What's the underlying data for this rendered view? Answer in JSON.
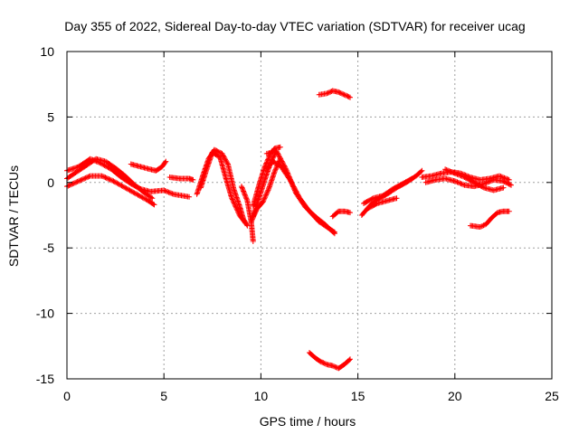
{
  "chart_data": {
    "type": "scatter",
    "title": "Day 355 of 2022, Sidereal Day-to-day VTEC variation (SDTVAR) for receiver ucag",
    "xlabel": "GPS time / hours",
    "ylabel": "SDTVAR / TECUs",
    "xlim": [
      0,
      25
    ],
    "ylim": [
      -15,
      10
    ],
    "xticks": [
      0,
      5,
      10,
      15,
      20,
      25
    ],
    "yticks": [
      -15,
      -10,
      -5,
      0,
      5,
      10
    ],
    "grid": true,
    "marker": "+",
    "series": [
      {
        "name": "SDTVAR",
        "color": "#ff0000",
        "arcs": [
          [
            [
              0.0,
              0.3
            ],
            [
              0.5,
              0.8
            ],
            [
              1.0,
              1.3
            ],
            [
              1.5,
              1.8
            ],
            [
              2.0,
              1.6
            ],
            [
              2.5,
              1.1
            ],
            [
              3.0,
              0.5
            ],
            [
              3.5,
              -0.2
            ],
            [
              4.0,
              -0.8
            ],
            [
              4.4,
              -1.2
            ]
          ],
          [
            [
              0.0,
              0.9
            ],
            [
              0.6,
              1.2
            ],
            [
              1.2,
              1.8
            ],
            [
              1.7,
              1.5
            ],
            [
              2.3,
              1.0
            ],
            [
              2.8,
              0.4
            ],
            [
              3.3,
              -0.1
            ],
            [
              3.8,
              -0.5
            ],
            [
              4.3,
              -0.7
            ],
            [
              5.0,
              -0.6
            ],
            [
              5.5,
              -0.9
            ],
            [
              6.3,
              -1.1
            ]
          ],
          [
            [
              0.0,
              -0.3
            ],
            [
              0.6,
              0.1
            ],
            [
              1.2,
              0.5
            ],
            [
              1.8,
              0.5
            ],
            [
              2.4,
              0.1
            ],
            [
              3.0,
              -0.4
            ],
            [
              3.6,
              -0.9
            ],
            [
              4.2,
              -1.4
            ],
            [
              4.5,
              -1.7
            ]
          ],
          [
            [
              3.3,
              1.4
            ],
            [
              3.8,
              1.2
            ],
            [
              4.3,
              1.0
            ],
            [
              4.6,
              0.9
            ],
            [
              4.9,
              1.2
            ],
            [
              5.1,
              1.6
            ]
          ],
          [
            [
              5.3,
              0.4
            ],
            [
              5.8,
              0.3
            ],
            [
              6.3,
              0.3
            ],
            [
              6.5,
              0.2
            ]
          ],
          [
            [
              6.7,
              -0.9
            ],
            [
              7.0,
              0.5
            ],
            [
              7.3,
              1.8
            ],
            [
              7.6,
              2.5
            ],
            [
              8.0,
              2.2
            ],
            [
              8.3,
              1.4
            ],
            [
              8.6,
              -0.5
            ],
            [
              8.9,
              -1.8
            ],
            [
              9.1,
              -2.8
            ],
            [
              9.3,
              -3.3
            ]
          ],
          [
            [
              6.9,
              -0.4
            ],
            [
              7.2,
              1.0
            ],
            [
              7.5,
              2.3
            ],
            [
              7.9,
              1.9
            ],
            [
              8.2,
              0.3
            ],
            [
              8.5,
              -1.2
            ],
            [
              8.9,
              -2.5
            ],
            [
              9.2,
              -3.1
            ]
          ],
          [
            [
              9.0,
              -0.3
            ],
            [
              9.3,
              -1.4
            ],
            [
              9.5,
              -3.0
            ],
            [
              9.6,
              -4.5
            ]
          ],
          [
            [
              9.6,
              -1.8
            ],
            [
              9.9,
              -0.2
            ],
            [
              10.2,
              1.2
            ],
            [
              10.5,
              2.2
            ],
            [
              10.7,
              2.6
            ],
            [
              11.0,
              2.7
            ]
          ],
          [
            [
              9.5,
              -3.0
            ],
            [
              9.8,
              -2.0
            ],
            [
              10.1,
              -1.5
            ],
            [
              10.4,
              -0.5
            ],
            [
              10.7,
              0.8
            ],
            [
              11.0,
              1.8
            ]
          ],
          [
            [
              9.6,
              -2.6
            ],
            [
              9.9,
              -1.2
            ],
            [
              10.2,
              0.2
            ],
            [
              10.5,
              1.5
            ],
            [
              10.8,
              2.4
            ]
          ],
          [
            [
              10.3,
              1.0
            ],
            [
              10.6,
              1.6
            ],
            [
              11.0,
              1.3
            ],
            [
              11.5,
              0.2
            ],
            [
              12.0,
              -1.2
            ],
            [
              12.5,
              -2.2
            ],
            [
              13.0,
              -3.0
            ],
            [
              13.5,
              -3.5
            ],
            [
              13.8,
              -3.8
            ]
          ],
          [
            [
              10.3,
              2.2
            ],
            [
              10.8,
              2.4
            ],
            [
              11.3,
              1.0
            ],
            [
              11.8,
              -0.8
            ],
            [
              12.3,
              -1.9
            ],
            [
              12.8,
              -2.6
            ],
            [
              13.3,
              -3.2
            ],
            [
              13.8,
              -3.9
            ]
          ],
          [
            [
              13.7,
              -2.6
            ],
            [
              14.0,
              -2.2
            ],
            [
              14.3,
              -2.2
            ],
            [
              14.6,
              -2.3
            ]
          ],
          [
            [
              13.0,
              6.7
            ],
            [
              13.4,
              6.8
            ],
            [
              13.7,
              7.0
            ],
            [
              14.0,
              6.9
            ],
            [
              14.3,
              6.7
            ],
            [
              14.6,
              6.5
            ]
          ],
          [
            [
              12.5,
              -13.0
            ],
            [
              12.8,
              -13.4
            ],
            [
              13.1,
              -13.7
            ],
            [
              13.4,
              -13.9
            ],
            [
              13.7,
              -14.0
            ],
            [
              14.0,
              -14.2
            ],
            [
              14.3,
              -13.9
            ],
            [
              14.6,
              -13.5
            ]
          ],
          [
            [
              15.2,
              -2.5
            ],
            [
              15.6,
              -1.8
            ],
            [
              16.0,
              -1.3
            ],
            [
              16.5,
              -0.9
            ],
            [
              17.0,
              -0.4
            ],
            [
              17.5,
              0.0
            ],
            [
              18.0,
              0.5
            ],
            [
              18.3,
              0.9
            ]
          ],
          [
            [
              15.3,
              -1.6
            ],
            [
              15.8,
              -1.2
            ],
            [
              16.3,
              -1.0
            ],
            [
              16.8,
              -0.5
            ],
            [
              17.3,
              -0.1
            ],
            [
              17.8,
              0.3
            ]
          ],
          [
            [
              15.5,
              -2.0
            ],
            [
              16.0,
              -1.6
            ],
            [
              16.5,
              -1.4
            ],
            [
              17.0,
              -1.2
            ]
          ],
          [
            [
              18.3,
              0.4
            ],
            [
              18.8,
              0.5
            ],
            [
              19.3,
              0.7
            ],
            [
              19.8,
              0.8
            ],
            [
              20.3,
              0.7
            ],
            [
              20.8,
              0.4
            ],
            [
              21.3,
              0.2
            ],
            [
              21.8,
              0.3
            ],
            [
              22.3,
              0.5
            ],
            [
              22.8,
              0.2
            ]
          ],
          [
            [
              18.5,
              0.0
            ],
            [
              19.0,
              0.2
            ],
            [
              19.5,
              0.3
            ],
            [
              20.0,
              0.1
            ],
            [
              20.5,
              -0.2
            ],
            [
              21.0,
              -0.3
            ],
            [
              21.5,
              -0.1
            ],
            [
              22.0,
              0.2
            ],
            [
              22.5,
              0.1
            ],
            [
              22.9,
              -0.2
            ]
          ],
          [
            [
              19.5,
              1.0
            ],
            [
              20.0,
              0.7
            ],
            [
              20.5,
              0.4
            ],
            [
              21.0,
              0.0
            ],
            [
              21.5,
              -0.4
            ],
            [
              22.0,
              -0.6
            ],
            [
              22.5,
              -0.4
            ]
          ],
          [
            [
              20.8,
              -3.3
            ],
            [
              21.3,
              -3.4
            ],
            [
              21.6,
              -3.2
            ],
            [
              21.9,
              -2.7
            ],
            [
              22.2,
              -2.3
            ],
            [
              22.5,
              -2.2
            ],
            [
              22.8,
              -2.2
            ]
          ]
        ]
      }
    ]
  }
}
